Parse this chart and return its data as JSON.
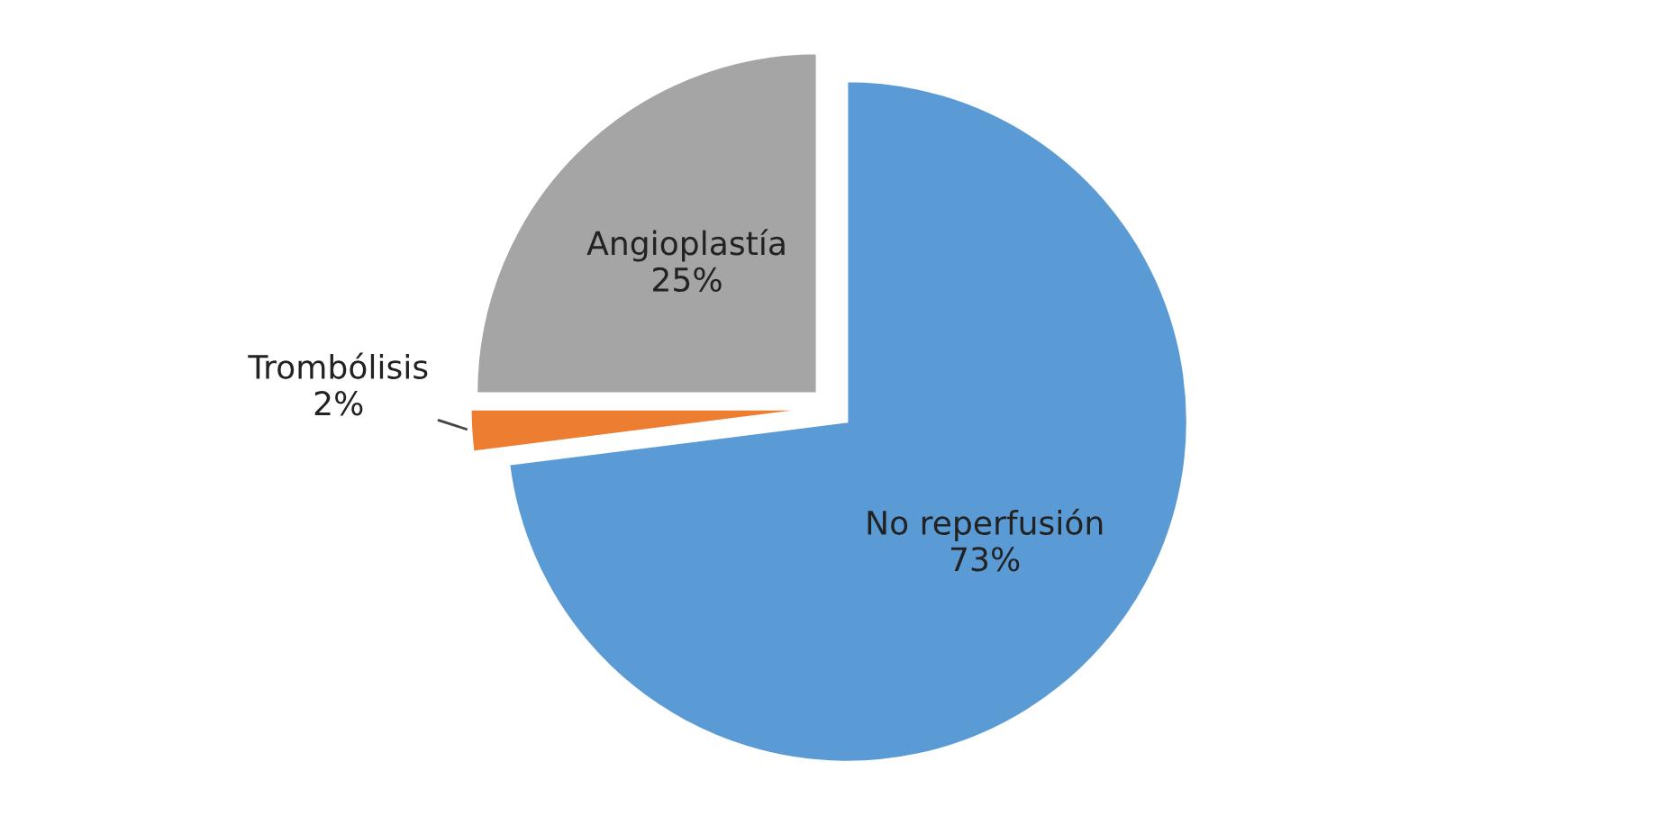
{
  "chart_data": {
    "type": "pie",
    "categories": [
      "No reperfusión",
      "Trombólisis",
      "Angioplastía"
    ],
    "values": [
      73,
      2,
      25
    ],
    "colors": [
      "#5b9bd5",
      "#ed7d31",
      "#a5a5a5"
    ],
    "value_labels": [
      "73%",
      "2%",
      "25%"
    ],
    "legend": false
  }
}
